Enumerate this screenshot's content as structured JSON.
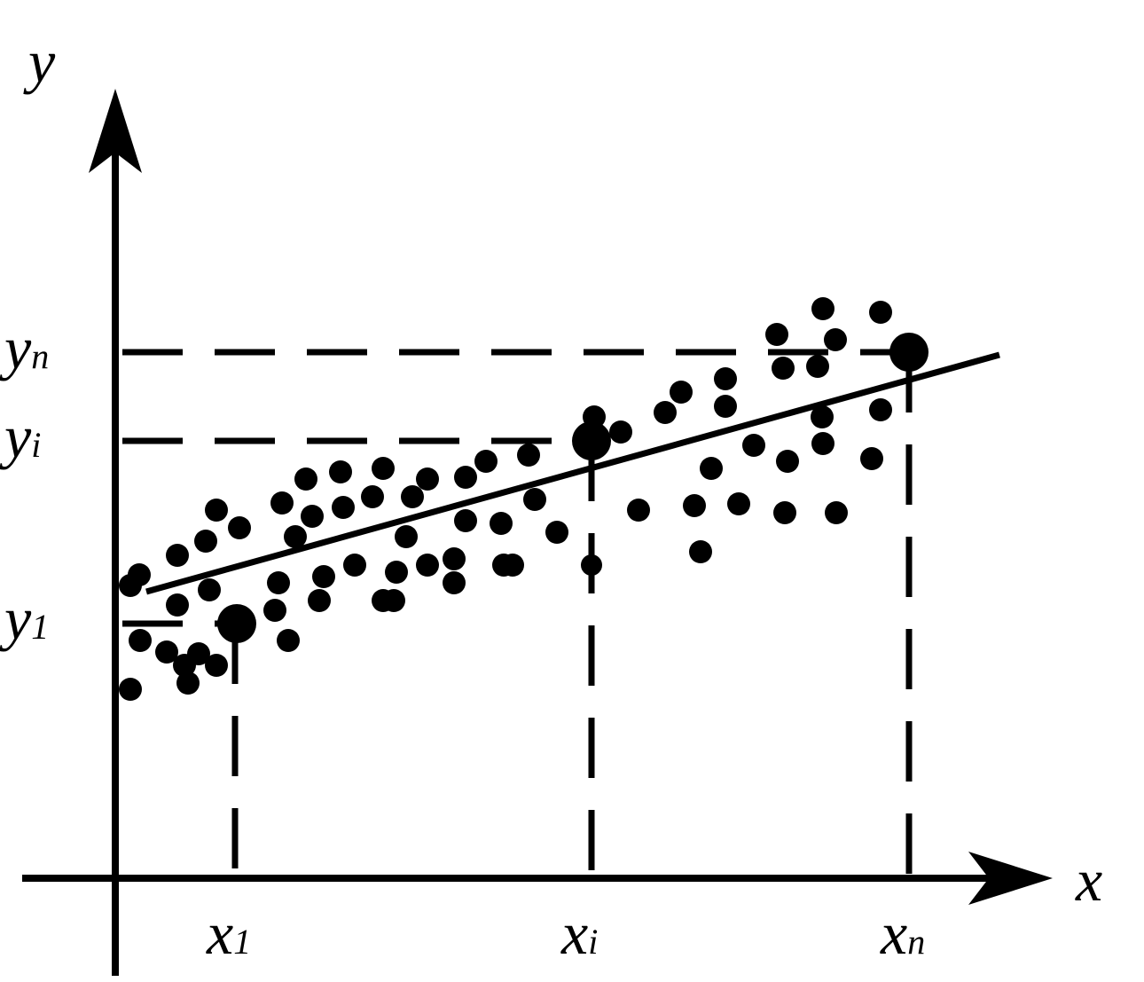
{
  "axes": {
    "x": "x",
    "y": "y"
  },
  "x_labels": [
    {
      "main": "x",
      "sub": "1"
    },
    {
      "main": "x",
      "sub": "i"
    },
    {
      "main": "x",
      "sub": "n"
    }
  ],
  "y_labels": [
    {
      "main": "y",
      "sub": "n"
    },
    {
      "main": "y",
      "sub": "i"
    },
    {
      "main": "y",
      "sub": "1"
    }
  ]
}
